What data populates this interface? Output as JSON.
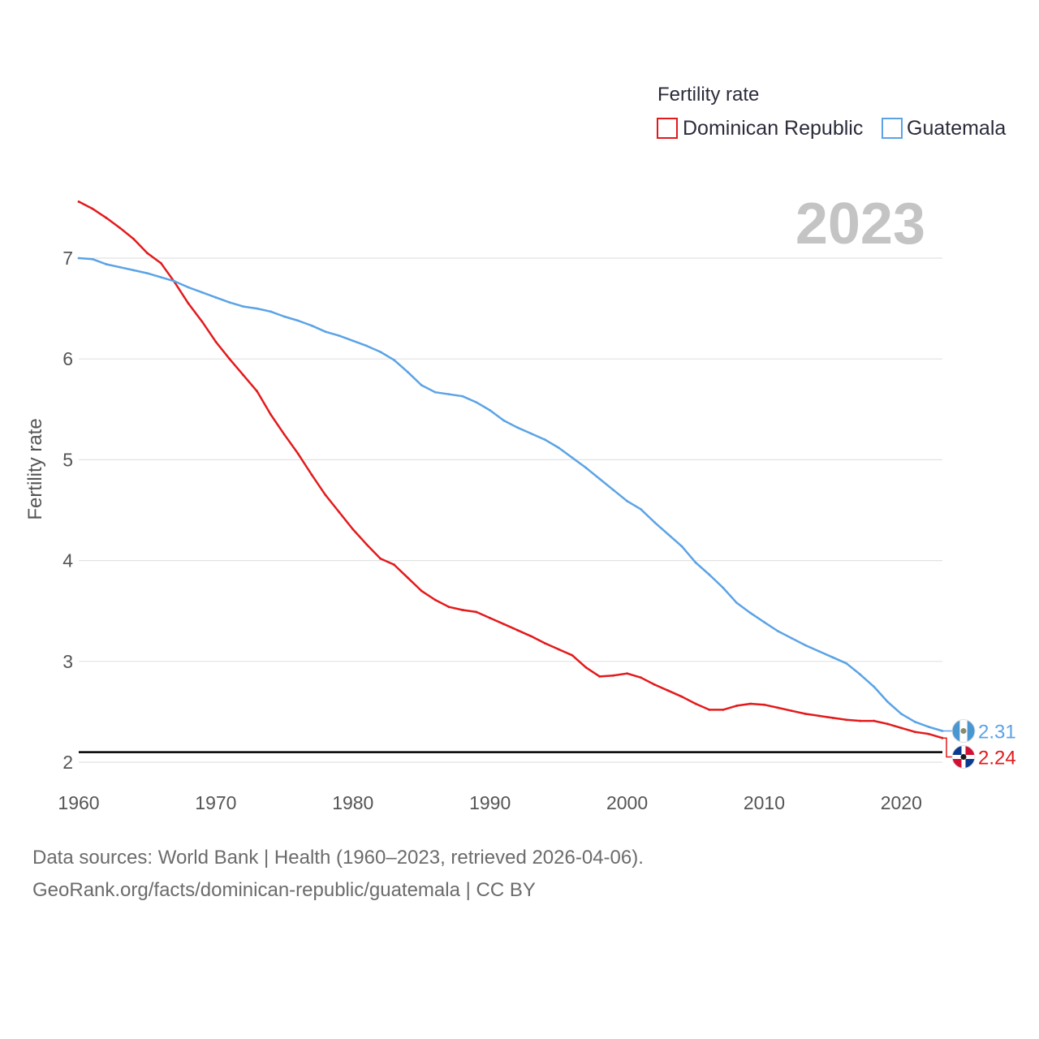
{
  "chart_data": {
    "type": "line",
    "legend_title": "Fertility rate",
    "legend_position": "top-right",
    "year": "2023",
    "ylabel": "Fertility rate",
    "xlim": [
      1960,
      2023
    ],
    "ylim": [
      2,
      7.6
    ],
    "x_ticks": [
      "1960",
      "1970",
      "1980",
      "1990",
      "2000",
      "2010",
      "2020"
    ],
    "y_ticks": [
      "2",
      "3",
      "4",
      "5",
      "6",
      "7"
    ],
    "reference_line": 2.1,
    "series": [
      {
        "name": "Dominican Republic",
        "color": "#e31a1c",
        "end_label": "2.24",
        "flag_icon": "dominican-republic-flag-icon",
        "x": [
          1960,
          1961,
          1962,
          1963,
          1964,
          1965,
          1966,
          1967,
          1968,
          1969,
          1970,
          1971,
          1972,
          1973,
          1974,
          1975,
          1976,
          1977,
          1978,
          1979,
          1980,
          1981,
          1982,
          1983,
          1984,
          1985,
          1986,
          1987,
          1988,
          1989,
          1990,
          1991,
          1992,
          1993,
          1994,
          1995,
          1996,
          1997,
          1998,
          1999,
          2000,
          2001,
          2002,
          2003,
          2004,
          2005,
          2006,
          2007,
          2008,
          2009,
          2010,
          2011,
          2012,
          2013,
          2014,
          2015,
          2016,
          2017,
          2018,
          2019,
          2020,
          2021,
          2022,
          2023
        ],
        "values": [
          7.56,
          7.49,
          7.4,
          7.3,
          7.19,
          7.05,
          6.95,
          6.76,
          6.55,
          6.37,
          6.17,
          6.0,
          5.84,
          5.68,
          5.45,
          5.25,
          5.06,
          4.85,
          4.65,
          4.48,
          4.31,
          4.16,
          4.02,
          3.96,
          3.83,
          3.7,
          3.61,
          3.54,
          3.51,
          3.49,
          3.43,
          3.37,
          3.31,
          3.25,
          3.18,
          3.12,
          3.06,
          2.94,
          2.85,
          2.86,
          2.88,
          2.84,
          2.77,
          2.71,
          2.65,
          2.58,
          2.52,
          2.52,
          2.56,
          2.58,
          2.57,
          2.54,
          2.51,
          2.48,
          2.46,
          2.44,
          2.42,
          2.41,
          2.41,
          2.38,
          2.34,
          2.3,
          2.28,
          2.24
        ]
      },
      {
        "name": "Guatemala",
        "color": "#5ba3e6",
        "end_label": "2.31",
        "flag_icon": "guatemala-flag-icon",
        "x": [
          1960,
          1961,
          1962,
          1963,
          1964,
          1965,
          1966,
          1967,
          1968,
          1969,
          1970,
          1971,
          1972,
          1973,
          1974,
          1975,
          1976,
          1977,
          1978,
          1979,
          1980,
          1981,
          1982,
          1983,
          1984,
          1985,
          1986,
          1987,
          1988,
          1989,
          1990,
          1991,
          1992,
          1993,
          1994,
          1995,
          1996,
          1997,
          1998,
          1999,
          2000,
          2001,
          2002,
          2003,
          2004,
          2005,
          2006,
          2007,
          2008,
          2009,
          2010,
          2011,
          2012,
          2013,
          2014,
          2015,
          2016,
          2017,
          2018,
          2019,
          2020,
          2021,
          2022,
          2023
        ],
        "values": [
          7.0,
          6.99,
          6.94,
          6.91,
          6.88,
          6.85,
          6.81,
          6.77,
          6.71,
          6.66,
          6.61,
          6.56,
          6.52,
          6.5,
          6.47,
          6.42,
          6.38,
          6.33,
          6.27,
          6.23,
          6.18,
          6.13,
          6.07,
          5.99,
          5.87,
          5.74,
          5.67,
          5.65,
          5.63,
          5.57,
          5.49,
          5.39,
          5.32,
          5.26,
          5.2,
          5.12,
          5.02,
          4.92,
          4.81,
          4.7,
          4.59,
          4.51,
          4.38,
          4.26,
          4.14,
          3.98,
          3.86,
          3.73,
          3.58,
          3.48,
          3.39,
          3.3,
          3.23,
          3.16,
          3.1,
          3.04,
          2.98,
          2.87,
          2.75,
          2.6,
          2.48,
          2.4,
          2.35,
          2.31
        ]
      }
    ]
  },
  "footer": {
    "line1": "Data sources: World Bank | Health (1960–2023, retrieved 2026-04-06).",
    "line2": "GeoRank.org/facts/dominican-republic/guatemala | CC BY"
  }
}
